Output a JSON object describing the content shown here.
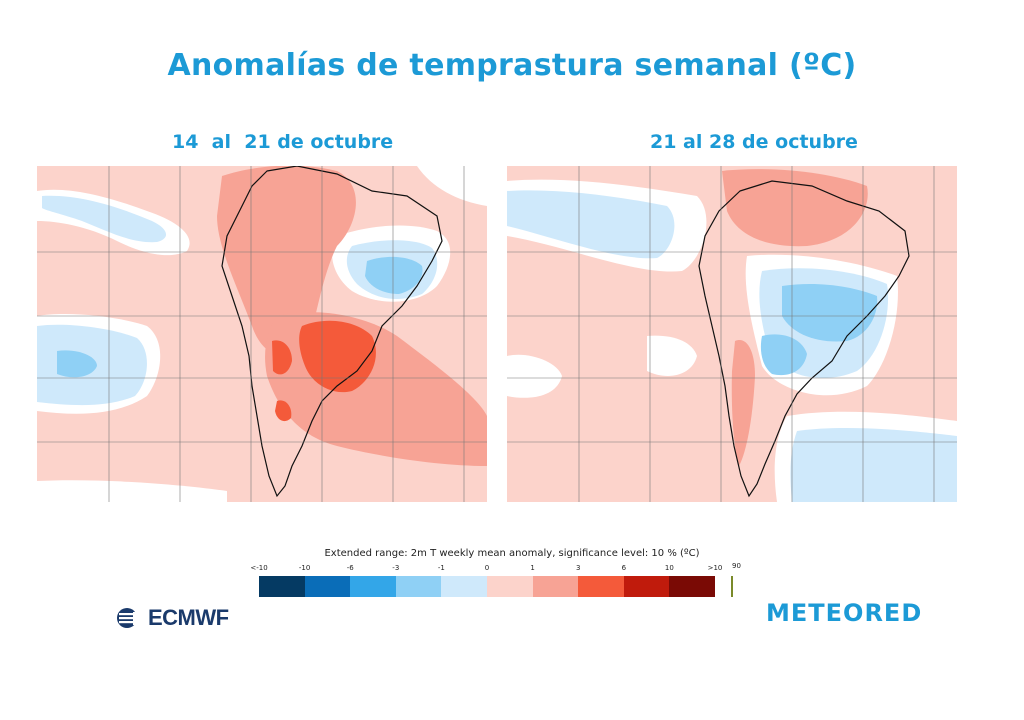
{
  "title": "Anomalías de temprastura semanal (ºC)",
  "maps": [
    {
      "subtitle": "14  al  21 de octubre"
    },
    {
      "subtitle": "21 al 28 de octubre"
    }
  ],
  "legend": {
    "caption": "Extended range: 2m T weekly mean anomaly, significance level: 10 % (ºC)",
    "ticks": [
      "<-10",
      "-10",
      "-6",
      "-3",
      "-1",
      "0",
      "1",
      "3",
      "6",
      "10",
      ">10"
    ],
    "colors": [
      "#053a63",
      "#0a6db8",
      "#33a6e8",
      "#8fd0f5",
      "#cfe9fb",
      "#fcd3cb",
      "#f7a395",
      "#f45a3a",
      "#c01b0c",
      "#7a0a05"
    ],
    "significance_label": "90"
  },
  "logos": {
    "left": "ECMWF",
    "right": "METEORED"
  },
  "colors": {
    "accent": "#1c9ad6"
  }
}
